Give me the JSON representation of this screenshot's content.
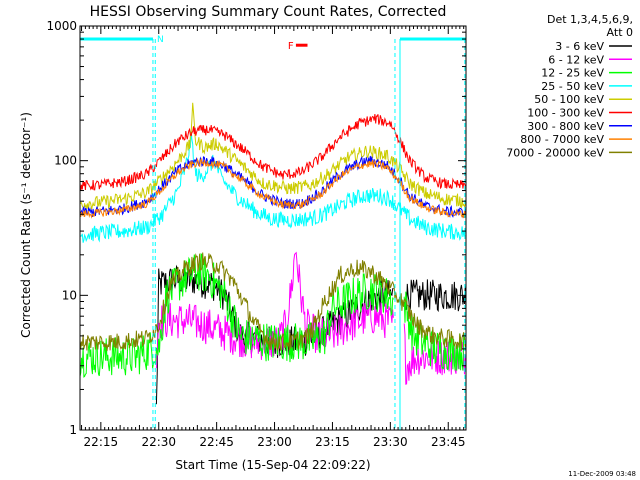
{
  "chart_data": {
    "type": "line",
    "title": "HESSI Observing Summary Count Rates, Corrected",
    "xlabel": "Start Time (15-Sep-04 22:09:22)",
    "ylabel": "Corrected Count Rate (s⁻¹ detector⁻¹)",
    "yscale": "log",
    "ylim": [
      1,
      1000
    ],
    "xlim_minutes_after_2209": [
      0.6,
      100.6
    ],
    "xticks": [
      "22:15",
      "22:30",
      "22:45",
      "23:00",
      "23:15",
      "23:30",
      "23:45"
    ],
    "xticks_minutes": [
      6,
      21,
      36,
      51,
      66,
      81,
      96
    ],
    "yticks": [
      "1",
      "10",
      "100",
      "1000"
    ],
    "yticks_values": [
      1,
      10,
      100,
      1000
    ],
    "legend": {
      "placement": "right",
      "header": [
        "Det 1,3,4,5,6,9,",
        "Att 0"
      ],
      "entries": [
        {
          "label": "3 - 6 keV",
          "color": "#000000"
        },
        {
          "label": "6 - 12 keV",
          "color": "#ff00ff"
        },
        {
          "label": "12 - 25 keV",
          "color": "#00ff00"
        },
        {
          "label": "25 - 50 keV",
          "color": "#00ffff"
        },
        {
          "label": "50 - 100 keV",
          "color": "#cccc00"
        },
        {
          "label": "100 - 300 keV",
          "color": "#ff0000"
        },
        {
          "label": "300 - 800 keV",
          "color": "#0000ff"
        },
        {
          "label": "800 - 7000 keV",
          "color": "#ff8000"
        },
        {
          "label": "7000 - 20000 keV",
          "color": "#808000"
        }
      ]
    },
    "annotations": {
      "night_markers": {
        "label": "N",
        "color": "#00ffff",
        "y_value": 800,
        "segments_minutes": [
          [
            0.6,
            19.5
          ],
          [
            83.5,
            100.6
          ]
        ]
      },
      "saa_lines_minutes": [
        20.1,
        82.2,
        100.3
      ],
      "flare_marker": {
        "label": "F",
        "color": "#ff0000",
        "x_minutes": [
          55.5,
          58.5
        ],
        "y_value": 720
      }
    },
    "series": [
      {
        "label": "3 - 6 keV",
        "color": "#000000",
        "noise": 0.12,
        "gaps": [
          [
            0,
            20.3
          ],
          [
            82.0,
            84.5
          ]
        ],
        "points": [
          [
            20.3,
            1.0
          ],
          [
            21,
            12
          ],
          [
            25,
            13
          ],
          [
            30,
            13
          ],
          [
            35,
            12
          ],
          [
            38,
            10
          ],
          [
            40,
            7
          ],
          [
            42,
            5
          ],
          [
            50,
            4.5
          ],
          [
            58,
            4.5
          ],
          [
            62,
            5
          ],
          [
            66,
            6
          ],
          [
            72,
            8
          ],
          [
            76,
            9.5
          ],
          [
            80,
            10
          ],
          [
            82,
            10
          ]
        ]
      },
      {
        "label": "6 - 12 keV",
        "color": "#ff00ff",
        "noise": 0.14,
        "gaps": [
          [
            0,
            20.3
          ],
          [
            82.0,
            84.5
          ]
        ],
        "points": [
          [
            20.3,
            3
          ],
          [
            21,
            6.5
          ],
          [
            28,
            6.5
          ],
          [
            33,
            6
          ],
          [
            40,
            5
          ],
          [
            45,
            4.5
          ],
          [
            52,
            4.5
          ],
          [
            54,
            6
          ],
          [
            55.5,
            12
          ],
          [
            56.5,
            23
          ],
          [
            57.5,
            12
          ],
          [
            59,
            6
          ],
          [
            62,
            5
          ],
          [
            66,
            5
          ],
          [
            70,
            6
          ],
          [
            76,
            7
          ],
          [
            80,
            6.5
          ],
          [
            82,
            6
          ],
          [
            84.5,
            6
          ],
          [
            85,
            3
          ],
          [
            88,
            3.5
          ],
          [
            100.6,
            3.5
          ]
        ]
      },
      {
        "label": "12 - 25 keV",
        "color": "#00ff00",
        "noise": 0.15,
        "gaps": [
          [
            82.0,
            84.5
          ]
        ],
        "points": [
          [
            0.6,
            3.5
          ],
          [
            8,
            3.5
          ],
          [
            15,
            3.5
          ],
          [
            19,
            4
          ],
          [
            21,
            4
          ],
          [
            23,
            10
          ],
          [
            27,
            13
          ],
          [
            31,
            15
          ],
          [
            34,
            14
          ],
          [
            38,
            10
          ],
          [
            42,
            5
          ],
          [
            50,
            4.5
          ],
          [
            60,
            4.5
          ],
          [
            64,
            5
          ],
          [
            66,
            8
          ],
          [
            72,
            10
          ],
          [
            76,
            11
          ],
          [
            80,
            10
          ],
          [
            82,
            9
          ],
          [
            84.5,
            9
          ],
          [
            87,
            5
          ],
          [
            92,
            4
          ],
          [
            100.6,
            3.8
          ]
        ]
      },
      {
        "label": "25 - 50 keV",
        "color": "#00ffff",
        "noise": 0.06,
        "points": [
          [
            0.6,
            28
          ],
          [
            6,
            29
          ],
          [
            12,
            30
          ],
          [
            18,
            32
          ],
          [
            22,
            40
          ],
          [
            26,
            60
          ],
          [
            28,
            90
          ],
          [
            29.5,
            150
          ],
          [
            30.5,
            80
          ],
          [
            32,
            75
          ],
          [
            34,
            90
          ],
          [
            35.5,
            100
          ],
          [
            37,
            75
          ],
          [
            41,
            55
          ],
          [
            46,
            42
          ],
          [
            50,
            37
          ],
          [
            56,
            36
          ],
          [
            62,
            38
          ],
          [
            66,
            43
          ],
          [
            70,
            50
          ],
          [
            74,
            55
          ],
          [
            78,
            55
          ],
          [
            81,
            52
          ],
          [
            83,
            45
          ],
          [
            86,
            37
          ],
          [
            90,
            32
          ],
          [
            95,
            30
          ],
          [
            100.6,
            29
          ]
        ]
      },
      {
        "label": "50 - 100 keV",
        "color": "#cccc00",
        "noise": 0.05,
        "points": [
          [
            0.6,
            48
          ],
          [
            6,
            49
          ],
          [
            12,
            52
          ],
          [
            18,
            58
          ],
          [
            22,
            75
          ],
          [
            26,
            100
          ],
          [
            29,
            130
          ],
          [
            29.8,
            240
          ],
          [
            30.6,
            140
          ],
          [
            33,
            125
          ],
          [
            36,
            135
          ],
          [
            38,
            120
          ],
          [
            43,
            90
          ],
          [
            48,
            68
          ],
          [
            55,
            62
          ],
          [
            60,
            65
          ],
          [
            65,
            80
          ],
          [
            70,
            105
          ],
          [
            75,
            118
          ],
          [
            80,
            110
          ],
          [
            83,
            90
          ],
          [
            86,
            68
          ],
          [
            90,
            57
          ],
          [
            95,
            52
          ],
          [
            100.6,
            50
          ]
        ]
      },
      {
        "label": "100 - 300 keV",
        "color": "#ff0000",
        "noise": 0.04,
        "points": [
          [
            0.6,
            65
          ],
          [
            6,
            66
          ],
          [
            12,
            70
          ],
          [
            18,
            80
          ],
          [
            22,
            105
          ],
          [
            26,
            140
          ],
          [
            30,
            165
          ],
          [
            34,
            170
          ],
          [
            38,
            155
          ],
          [
            43,
            120
          ],
          [
            48,
            90
          ],
          [
            53,
            78
          ],
          [
            58,
            82
          ],
          [
            63,
            105
          ],
          [
            68,
            150
          ],
          [
            73,
            190
          ],
          [
            77,
            205
          ],
          [
            81,
            190
          ],
          [
            83,
            150
          ],
          [
            86,
            100
          ],
          [
            90,
            75
          ],
          [
            95,
            67
          ],
          [
            100.6,
            65
          ]
        ]
      },
      {
        "label": "300 - 800 keV",
        "color": "#0000ff",
        "noise": 0.04,
        "points": [
          [
            0.6,
            41
          ],
          [
            6,
            42
          ],
          [
            12,
            44
          ],
          [
            18,
            50
          ],
          [
            22,
            65
          ],
          [
            26,
            85
          ],
          [
            30,
            98
          ],
          [
            34,
            100
          ],
          [
            38,
            92
          ],
          [
            43,
            72
          ],
          [
            48,
            55
          ],
          [
            53,
            48
          ],
          [
            58,
            48
          ],
          [
            63,
            58
          ],
          [
            68,
            80
          ],
          [
            73,
            96
          ],
          [
            76,
            100
          ],
          [
            80,
            93
          ],
          [
            83,
            75
          ],
          [
            86,
            55
          ],
          [
            90,
            46
          ],
          [
            95,
            42
          ],
          [
            100.6,
            41
          ]
        ]
      },
      {
        "label": "800 - 7000 keV",
        "color": "#ff8000",
        "noise": 0.03,
        "points": [
          [
            0.6,
            40
          ],
          [
            6,
            41
          ],
          [
            12,
            43
          ],
          [
            18,
            48
          ],
          [
            22,
            62
          ],
          [
            26,
            82
          ],
          [
            30,
            95
          ],
          [
            34,
            97
          ],
          [
            38,
            90
          ],
          [
            43,
            70
          ],
          [
            48,
            54
          ],
          [
            53,
            47
          ],
          [
            58,
            47
          ],
          [
            63,
            56
          ],
          [
            68,
            77
          ],
          [
            73,
            92
          ],
          [
            76,
            95
          ],
          [
            80,
            90
          ],
          [
            83,
            72
          ],
          [
            86,
            53
          ],
          [
            90,
            45
          ],
          [
            95,
            41
          ],
          [
            100.6,
            40
          ]
        ]
      },
      {
        "label": "7000 - 20000 keV",
        "color": "#808000",
        "noise": 0.07,
        "points": [
          [
            0.6,
            4.5
          ],
          [
            10,
            4.5
          ],
          [
            18,
            4.8
          ],
          [
            21,
            6
          ],
          [
            24,
            12
          ],
          [
            28,
            16
          ],
          [
            32,
            18
          ],
          [
            36,
            17
          ],
          [
            40,
            13
          ],
          [
            43,
            9
          ],
          [
            46,
            6
          ],
          [
            50,
            4.5
          ],
          [
            56,
            4.5
          ],
          [
            60,
            5
          ],
          [
            64,
            9
          ],
          [
            68,
            14
          ],
          [
            72,
            16
          ],
          [
            76,
            15
          ],
          [
            80,
            12
          ],
          [
            84,
            9
          ],
          [
            88,
            6
          ],
          [
            92,
            5
          ],
          [
            100.6,
            4.5
          ]
        ]
      }
    ]
  },
  "footer": {
    "stamp": "11-Dec-2009 03:48"
  }
}
